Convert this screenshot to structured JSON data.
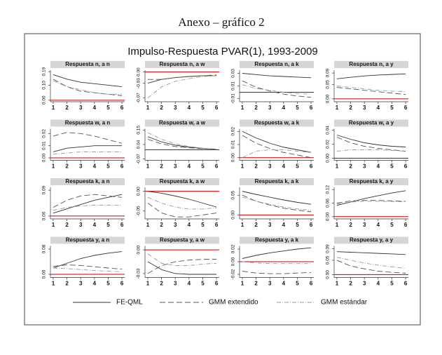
{
  "caption": "Anexo – gráfico 2",
  "title": "Impulso-Respuesta PVAR(1), 1993-2009",
  "series_styles": [
    {
      "name": "FE-QML",
      "color": "#333333",
      "dash": "none"
    },
    {
      "name": "GMM extendido",
      "color": "#555555",
      "dash": "8 4"
    },
    {
      "name": "GMM estándar",
      "color": "#999999",
      "dash": "6 2 1 2"
    }
  ],
  "reference_color": "#c00000",
  "chart_data": [
    {
      "type": "line",
      "title": "Respuesta n, a n",
      "x": [
        1,
        2,
        3,
        4,
        5,
        6
      ],
      "xticks": [
        1,
        2,
        3,
        4,
        5,
        6
      ],
      "xlim": [
        0.8,
        6.2
      ],
      "ylim": [
        -0.01,
        0.2
      ],
      "yticks": [
        {
          "value": 0,
          "label": "0.00"
        },
        {
          "value": 0.1,
          "label": "0.10"
        },
        {
          "value": 0.19,
          "label": "0.19"
        }
      ],
      "reference_line": 0,
      "series": [
        {
          "values": [
            0.17,
            0.14,
            0.12,
            0.11,
            0.1,
            0.09
          ]
        },
        {
          "values": [
            0.14,
            0.09,
            0.06,
            0.05,
            0.04,
            0.03
          ]
        },
        {
          "values": [
            0.13,
            0.09,
            0.07,
            0.05,
            0.04,
            0.04
          ]
        }
      ]
    },
    {
      "type": "line",
      "title": "Respuesta n, a w",
      "x": [
        1,
        2,
        3,
        4,
        5,
        6
      ],
      "xticks": [
        1,
        2,
        3,
        4,
        5,
        6
      ],
      "xlim": [
        0.8,
        6.2
      ],
      "ylim": [
        -0.08,
        0.005
      ],
      "yticks": [
        {
          "value": -0.07,
          "label": "-0.07"
        },
        {
          "value": -0.03,
          "label": "-0.03"
        },
        {
          "value": 0,
          "label": "0.00"
        }
      ],
      "reference_line": 0,
      "series": [
        {
          "values": [
            -0.03,
            -0.02,
            -0.015,
            -0.012,
            -0.01,
            -0.01
          ]
        },
        {
          "values": [
            -0.02,
            -0.02,
            -0.015,
            -0.012,
            -0.01,
            -0.008
          ]
        },
        {
          "values": [
            -0.07,
            -0.04,
            -0.025,
            -0.018,
            -0.012,
            -0.01
          ]
        }
      ]
    },
    {
      "type": "line",
      "title": "Respuesta n, a k",
      "x": [
        1,
        2,
        3,
        4,
        5,
        6
      ],
      "xticks": [
        1,
        2,
        3,
        4,
        5,
        6
      ],
      "xlim": [
        0.8,
        6.2
      ],
      "ylim": [
        -0.015,
        0.035
      ],
      "yticks": [
        {
          "value": -0.01,
          "label": "-0.01"
        },
        {
          "value": 0.01,
          "label": "0.01"
        },
        {
          "value": 0.03,
          "label": "0.03"
        }
      ],
      "reference_line": 0,
      "series": [
        {
          "values": [
            0.03,
            0.028,
            0.026,
            0.025,
            0.024,
            0.023
          ]
        },
        {
          "values": [
            0.018,
            0.008,
            0.002,
            -0.003,
            -0.006,
            -0.008
          ]
        },
        {
          "values": [
            0.012,
            0.006,
            0.003,
            0,
            -0.002,
            -0.003
          ]
        }
      ]
    },
    {
      "type": "line",
      "title": "Respuesta n, a y",
      "x": [
        1,
        2,
        3,
        4,
        5,
        6
      ],
      "xticks": [
        1,
        2,
        3,
        4,
        5,
        6
      ],
      "xlim": [
        0.8,
        6.2
      ],
      "ylim": [
        -0.01,
        0.1
      ],
      "yticks": [
        {
          "value": 0,
          "label": "0.00"
        },
        {
          "value": 0.05,
          "label": "0.05"
        },
        {
          "value": 0.09,
          "label": "0.09"
        }
      ],
      "reference_line": 0,
      "series": [
        {
          "values": [
            0.07,
            0.075,
            0.08,
            0.083,
            0.085,
            0.087
          ]
        },
        {
          "values": [
            0.04,
            0.035,
            0.03,
            0.025,
            0.02,
            0.015
          ]
        },
        {
          "values": [
            0.045,
            0.04,
            0.035,
            0.03,
            0.027,
            0.025
          ]
        }
      ]
    },
    {
      "type": "line",
      "title": "Respuesta w, a n",
      "x": [
        1,
        2,
        3,
        4,
        5,
        6
      ],
      "xticks": [
        1,
        2,
        3,
        4,
        5,
        6
      ],
      "xlim": [
        0.8,
        6.2
      ],
      "ylim": [
        -0.002,
        0.024
      ],
      "yticks": [
        {
          "value": 0,
          "label": "0.00"
        },
        {
          "value": 0.01,
          "label": "0.01"
        },
        {
          "value": 0.02,
          "label": "0.02"
        }
      ],
      "reference_line": 0,
      "series": [
        {
          "values": [
            0.005,
            0.008,
            0.009,
            0.01,
            0.01,
            0.01
          ]
        },
        {
          "values": [
            0.018,
            0.021,
            0.02,
            0.018,
            0.015,
            0.012
          ]
        },
        {
          "values": [
            0.003,
            0.004,
            0.005,
            0.005,
            0.005,
            0.005
          ]
        }
      ]
    },
    {
      "type": "line",
      "title": "Respuesta w, a w",
      "x": [
        1,
        2,
        3,
        4,
        5,
        6
      ],
      "xticks": [
        1,
        2,
        3,
        4,
        5,
        6
      ],
      "xlim": [
        0.8,
        6.2
      ],
      "ylim": [
        -0.08,
        0.16
      ],
      "yticks": [
        {
          "value": -0.07,
          "label": "-0.07"
        },
        {
          "value": 0.04,
          "label": "0.04"
        },
        {
          "value": 0.15,
          "label": "0.15"
        }
      ],
      "reference_line": 0,
      "series": [
        {
          "values": [
            0.1,
            0.06,
            0.035,
            0.02,
            0.01,
            0.005
          ]
        },
        {
          "values": [
            0.08,
            0.045,
            0.025,
            0.015,
            0.008,
            0.005
          ]
        },
        {
          "values": [
            0.13,
            0.08,
            0.045,
            0.025,
            0.012,
            0.005
          ]
        }
      ]
    },
    {
      "type": "line",
      "title": "Respuesta w, a k",
      "x": [
        1,
        2,
        3,
        4,
        5,
        6
      ],
      "xticks": [
        1,
        2,
        3,
        4,
        5,
        6
      ],
      "xlim": [
        0.8,
        6.2
      ],
      "ylim": [
        -0.002,
        0.022
      ],
      "yticks": [
        {
          "value": 0,
          "label": "0.00"
        },
        {
          "value": 0.01,
          "label": "0.01"
        },
        {
          "value": 0.02,
          "label": "0.02"
        }
      ],
      "reference_line": 0,
      "series": [
        {
          "values": [
            0.02,
            0.015,
            0.011,
            0.008,
            0.006,
            0.004
          ]
        },
        {
          "values": [
            0.017,
            0.011,
            0.007,
            0.004,
            0.002,
            0
          ]
        },
        {
          "values": [
            0,
            0.005,
            0.006,
            0.006,
            0.005,
            0.004
          ]
        }
      ]
    },
    {
      "type": "line",
      "title": "Respuesta w, a y",
      "x": [
        1,
        2,
        3,
        4,
        5,
        6
      ],
      "xticks": [
        1,
        2,
        3,
        4,
        5,
        6
      ],
      "xlim": [
        0.8,
        6.2
      ],
      "ylim": [
        -0.003,
        0.042
      ],
      "yticks": [
        {
          "value": 0,
          "label": "0.00"
        },
        {
          "value": 0.02,
          "label": "0.02"
        },
        {
          "value": 0.04,
          "label": "0.04"
        }
      ],
      "reference_line": 0,
      "series": [
        {
          "values": [
            0.033,
            0.027,
            0.022,
            0.019,
            0.017,
            0.016
          ]
        },
        {
          "values": [
            0.03,
            0.022,
            0.017,
            0.014,
            0.012,
            0.01
          ]
        },
        {
          "values": [
            0.01,
            0.012,
            0.012,
            0.012,
            0.011,
            0.01
          ]
        }
      ]
    },
    {
      "type": "line",
      "title": "Respuesta k, a n",
      "x": [
        1,
        2,
        3,
        4,
        5,
        6
      ],
      "xticks": [
        1,
        2,
        3,
        4,
        5,
        6
      ],
      "xlim": [
        0.8,
        6.2
      ],
      "ylim": [
        -0.01,
        0.1
      ],
      "yticks": [
        {
          "value": 0,
          "label": "0.00"
        },
        {
          "value": 0.09,
          "label": "0.09"
        }
      ],
      "reference_line": 0,
      "series": [
        {
          "values": [
            0.01,
            0.025,
            0.04,
            0.055,
            0.065,
            0.075
          ]
        },
        {
          "values": [
            0.03,
            0.055,
            0.07,
            0.075,
            0.07,
            0.065
          ]
        },
        {
          "values": [
            0.02,
            0.03,
            0.035,
            0.038,
            0.038,
            0.037
          ]
        }
      ]
    },
    {
      "type": "line",
      "title": "Respuesta k, a w",
      "x": [
        1,
        2,
        3,
        4,
        5,
        6
      ],
      "xticks": [
        1,
        2,
        3,
        4,
        5,
        6
      ],
      "xlim": [
        0.8,
        6.2
      ],
      "ylim": [
        -0.07,
        0.01
      ],
      "yticks": [
        {
          "value": -0.05,
          "label": "-0.05"
        },
        {
          "value": 0,
          "label": "0.00"
        }
      ],
      "reference_line": 0,
      "series": [
        {
          "values": [
            0,
            -0.005,
            -0.012,
            -0.02,
            -0.03,
            -0.04
          ]
        },
        {
          "values": [
            -0.03,
            -0.055,
            -0.065,
            -0.065,
            -0.06,
            -0.055
          ]
        },
        {
          "values": [
            -0.015,
            -0.03,
            -0.04,
            -0.045,
            -0.045,
            -0.042
          ]
        }
      ]
    },
    {
      "type": "line",
      "title": "Respuesta k, a k",
      "x": [
        1,
        2,
        3,
        4,
        5,
        6
      ],
      "xticks": [
        1,
        2,
        3,
        4,
        5,
        6
      ],
      "xlim": [
        0.8,
        6.2
      ],
      "ylim": [
        -0.01,
        0.07
      ],
      "yticks": [
        {
          "value": 0,
          "label": "0.00"
        },
        {
          "value": 0.05,
          "label": "0.05"
        }
      ],
      "reference_line": 0,
      "series": [
        {
          "values": [
            0.06,
            0.052,
            0.045,
            0.038,
            0.032,
            0.027
          ]
        },
        {
          "values": [
            0.05,
            0.035,
            0.025,
            0.017,
            0.012,
            0.008
          ]
        },
        {
          "values": [
            0.045,
            0.035,
            0.027,
            0.02,
            0.015,
            0.012
          ]
        }
      ]
    },
    {
      "type": "line",
      "title": "Respuesta k, a y",
      "x": [
        1,
        2,
        3,
        4,
        5,
        6
      ],
      "xticks": [
        1,
        2,
        3,
        4,
        5,
        6
      ],
      "xlim": [
        0.8,
        6.2
      ],
      "ylim": [
        -0.01,
        0.13
      ],
      "yticks": [
        {
          "value": 0,
          "label": "0.00"
        },
        {
          "value": 0.06,
          "label": "0.06"
        },
        {
          "value": 0.12,
          "label": "0.12"
        }
      ],
      "reference_line": 0,
      "series": [
        {
          "values": [
            0.05,
            0.065,
            0.08,
            0.093,
            0.105,
            0.115
          ]
        },
        {
          "values": [
            0.06,
            0.07,
            0.072,
            0.072,
            0.07,
            0.068
          ]
        },
        {
          "values": [
            0.055,
            0.065,
            0.068,
            0.068,
            0.067,
            0.066
          ]
        }
      ]
    },
    {
      "type": "line",
      "title": "Respuesta y, a n",
      "x": [
        1,
        2,
        3,
        4,
        5,
        6
      ],
      "xticks": [
        1,
        2,
        3,
        4,
        5,
        6
      ],
      "xlim": [
        0.8,
        6.2
      ],
      "ylim": [
        -0.01,
        0.09
      ],
      "yticks": [
        {
          "value": 0,
          "label": "0.00"
        },
        {
          "value": 0.08,
          "label": "0.08"
        }
      ],
      "reference_line": 0,
      "series": [
        {
          "values": [
            0.02,
            0.035,
            0.05,
            0.06,
            0.067,
            0.072
          ]
        },
        {
          "values": [
            0.025,
            0.03,
            0.028,
            0.024,
            0.02,
            0.016
          ]
        },
        {
          "values": [
            0.02,
            0.018,
            0.015,
            0.012,
            0.01,
            0.008
          ]
        }
      ]
    },
    {
      "type": "line",
      "title": "Respuesta y, a w",
      "x": [
        1,
        2,
        3,
        4,
        5,
        6
      ],
      "xticks": [
        1,
        2,
        3,
        4,
        5,
        6
      ],
      "xlim": [
        0.8,
        6.2
      ],
      "ylim": [
        -0.035,
        0.005
      ],
      "yticks": [
        {
          "value": -0.03,
          "label": "-0.03"
        },
        {
          "value": 0,
          "label": "0.00"
        }
      ],
      "reference_line": 0,
      "series": [
        {
          "values": [
            -0.015,
            -0.025,
            -0.03,
            -0.031,
            -0.031,
            -0.031
          ]
        },
        {
          "values": [
            -0.03,
            -0.02,
            -0.015,
            -0.013,
            -0.012,
            -0.012
          ]
        },
        {
          "values": [
            -0.005,
            -0.017,
            -0.02,
            -0.02,
            -0.018,
            -0.017
          ]
        }
      ]
    },
    {
      "type": "line",
      "title": "Respuesta y, a k",
      "x": [
        1,
        2,
        3,
        4,
        5,
        6
      ],
      "xticks": [
        1,
        2,
        3,
        4,
        5,
        6
      ],
      "xlim": [
        0.8,
        6.2
      ],
      "ylim": [
        -0.025,
        0.025
      ],
      "yticks": [
        {
          "value": -0.02,
          "label": "-0.02"
        },
        {
          "value": 0,
          "label": "0.00"
        },
        {
          "value": 0.02,
          "label": "0.02"
        }
      ],
      "reference_line": 0,
      "series": [
        {
          "values": [
            0.005,
            0.01,
            0.014,
            0.017,
            0.02,
            0.022
          ]
        },
        {
          "values": [
            -0.015,
            -0.018,
            -0.019,
            -0.019,
            -0.018,
            -0.017
          ]
        },
        {
          "values": [
            0,
            -0.002,
            -0.003,
            -0.003,
            -0.003,
            -0.003
          ]
        }
      ]
    },
    {
      "type": "line",
      "title": "Respuesta y, a y",
      "x": [
        1,
        2,
        3,
        4,
        5,
        6
      ],
      "xticks": [
        1,
        2,
        3,
        4,
        5,
        6
      ],
      "xlim": [
        0.8,
        6.2
      ],
      "ylim": [
        -0.01,
        0.1
      ],
      "yticks": [
        {
          "value": 0,
          "label": "0.00"
        },
        {
          "value": 0.05,
          "label": "0.05"
        },
        {
          "value": 0.09,
          "label": "0.09"
        }
      ],
      "reference_line": 0,
      "series": [
        {
          "values": [
            0.08,
            0.078,
            0.076,
            0.074,
            0.072,
            0.07
          ]
        },
        {
          "values": [
            0.05,
            0.03,
            0.02,
            0.012,
            0.008,
            0.005
          ]
        },
        {
          "values": [
            0.06,
            0.05,
            0.04,
            0.033,
            0.027,
            0.022
          ]
        }
      ]
    }
  ]
}
